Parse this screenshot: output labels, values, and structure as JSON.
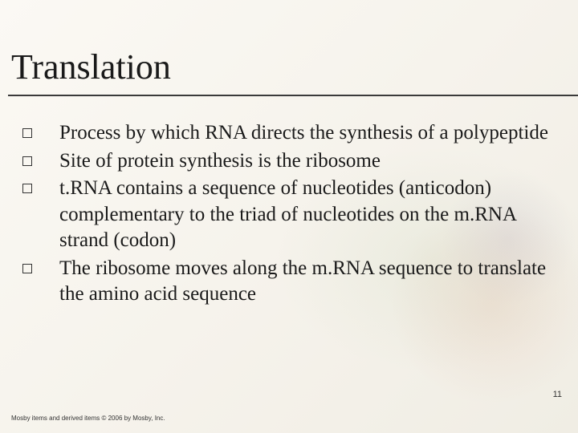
{
  "slide": {
    "title": "Translation",
    "bullets": [
      "Process by which RNA directs the synthesis of a polypeptide",
      "Site of protein synthesis is the ribosome",
      "t.RNA contains a sequence of nucleotides (anticodon) complementary to the triad of nucleotides on the m.RNA strand (codon)",
      "The ribosome moves along the m.RNA sequence to translate the amino acid sequence"
    ],
    "page_number": "11",
    "footer": "Mosby items and derived items © 2006 by Mosby, Inc."
  },
  "style": {
    "background_color": "#faf8f3",
    "title_color": "#1a1a1a",
    "title_fontsize": 44,
    "body_fontsize": 25,
    "body_color": "#1a1a1a",
    "rule_color": "#3a3a3a",
    "bullet_border_color": "#333333",
    "page_number_fontsize": 11,
    "footer_fontsize": 8,
    "font_family_title": "Georgia",
    "font_family_body": "Georgia",
    "font_family_meta": "Arial"
  }
}
